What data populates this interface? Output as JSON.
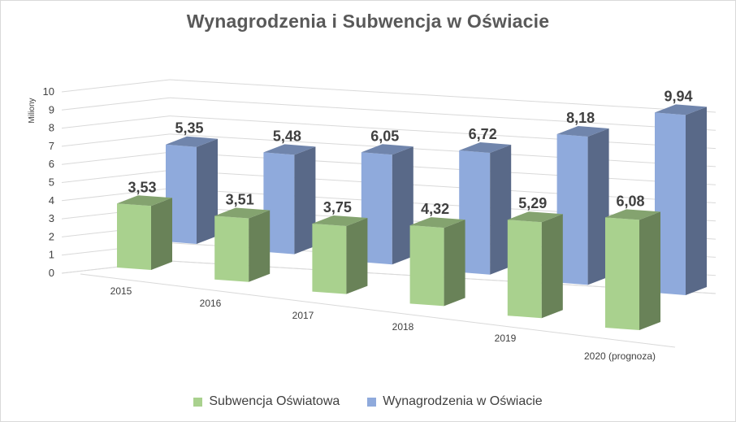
{
  "chart_data": {
    "type": "bar",
    "title": "Wynagrodzenia i Subwencja w Oświacie",
    "ylabel": "Miliony",
    "xlabel": "",
    "ylim": [
      0,
      10
    ],
    "y_ticks": [
      "0",
      "1",
      "2",
      "3",
      "4",
      "5",
      "6",
      "7",
      "8",
      "9",
      "10"
    ],
    "grid": true,
    "legend_position": "bottom",
    "categories": [
      "2015",
      "2016",
      "2017",
      "2018",
      "2019",
      "2020 (prognoza)"
    ],
    "series": [
      {
        "name": "Subwencja Oświatowa",
        "values": [
          3.53,
          3.51,
          3.75,
          4.32,
          5.29,
          6.08
        ],
        "labels": [
          "3,53",
          "3,51",
          "3,75",
          "4,32",
          "5,29",
          "6,08"
        ],
        "color": "#a9d18e"
      },
      {
        "name": "Wynagrodzenia w Oświacie",
        "values": [
          5.35,
          5.48,
          6.05,
          6.72,
          8.18,
          9.94
        ],
        "labels": [
          "5,35",
          "5,48",
          "6,05",
          "6,72",
          "8,18",
          "9,94"
        ],
        "color": "#8faadc"
      }
    ]
  }
}
